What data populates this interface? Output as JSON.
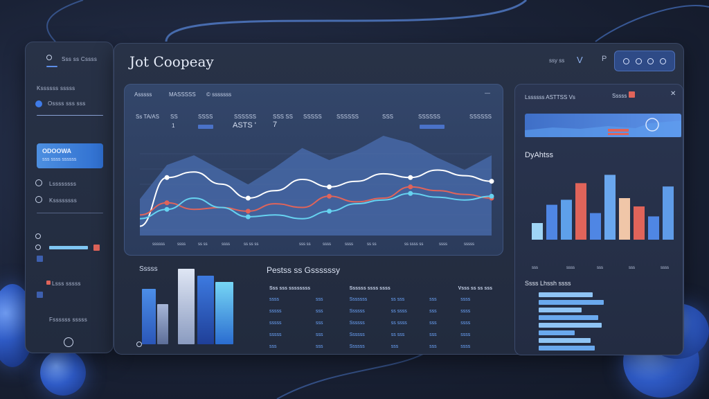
{
  "colors": {
    "accent": "#3f7be8",
    "bar_light": "#9fd4f5",
    "bar_peach": "#f0c6a8",
    "bar_red": "#e0645a",
    "line_white": "#ffffff",
    "line_red": "#e0645a",
    "line_cyan": "#66d2f0"
  },
  "icons": [
    "search-icon",
    "radio-icon",
    "chevron-down-icon",
    "square-icon",
    "circle-icon",
    "orb-icon",
    "help-icon"
  ],
  "sidebar": {
    "top_label": "Sss ss Cssss",
    "section1": "Kssssss sssss",
    "item1": "Ossss sss sss",
    "active_title": "ODOOWA",
    "active_sub": "sss ssss ssssss",
    "item2": "Lssssssss",
    "item3": "Kssssssss",
    "item4": "Lsss sssss",
    "item5": "Fssssss sssss"
  },
  "header": {
    "title": "Jot Coopeay",
    "label1": "ssy ss",
    "label2": "V",
    "label3": "P"
  },
  "line_card": {
    "title1": "Asssss",
    "title2": "MASSSSS",
    "title3": "© sssssss",
    "col_labels": [
      "Ss TA/AS",
      "SS",
      "SSSS",
      "SSSSSS",
      "SSS SS",
      "SSSSS",
      "SSSSSS",
      "SSS",
      "SSSSSS",
      "SSSSSS"
    ],
    "num1": "1",
    "num2": "ASTS '",
    "num3": "7",
    "x_labels": [
      "ssssss",
      "ssss",
      "ss ss",
      "ssss",
      "ss ss ss",
      "sss ss",
      "ssss",
      "ssss",
      "ss ss",
      "ss ssss ss",
      "ssss",
      "sssss"
    ]
  },
  "chart_data": {
    "type": "line",
    "series": [
      {
        "values": [
          10,
          62,
          68,
          55,
          40,
          48,
          60,
          52,
          58,
          66,
          62,
          70,
          64,
          58
        ]
      },
      {
        "values": [
          22,
          35,
          28,
          30,
          26,
          34,
          30,
          42,
          36,
          40,
          52,
          48,
          44,
          40
        ]
      },
      {
        "values": [
          18,
          28,
          40,
          30,
          20,
          22,
          18,
          26,
          34,
          38,
          45,
          41,
          38,
          42
        ]
      }
    ]
  },
  "bars_card": {
    "title": "Sssss",
    "values": [
      55,
      40,
      75,
      68,
      62
    ]
  },
  "table_card": {
    "title": "Pestss ss Gssssssy",
    "headers": [
      "Sss sss ssssssss",
      "Ssssss ssss ssss",
      "Vsss ss ss sss"
    ],
    "rows": [
      [
        "ssss",
        "sss",
        "Sssssss",
        "ss sss",
        "sss",
        "ssss"
      ],
      [
        "sssss",
        "sss",
        "Ssssss",
        "ss ssss",
        "sss",
        "ssss"
      ],
      [
        "sssss",
        "sss",
        "Ssssss",
        "ss ssss",
        "sss",
        "ssss"
      ],
      [
        "sssss",
        "sss",
        "Ssssss",
        "ss sss",
        "sss",
        "ssss"
      ],
      [
        "sss",
        "sss",
        "Ssssss",
        "sss",
        "sss",
        "ssss"
      ]
    ]
  },
  "right_panel": {
    "top_title": "Lssssss ASTTSS Vs",
    "top_label": "Sssss",
    "section_title": "DyAhtss",
    "bar_values": [
      20,
      42,
      48,
      68,
      32,
      78,
      50,
      40,
      28,
      64
    ],
    "x_labels": [
      "sss",
      "ssss",
      "sss",
      "sss",
      "ssss"
    ],
    "list_title": "Ssss Lhssh ssss",
    "hbar_values": [
      60,
      72,
      48,
      66,
      70,
      40,
      58,
      62
    ]
  }
}
